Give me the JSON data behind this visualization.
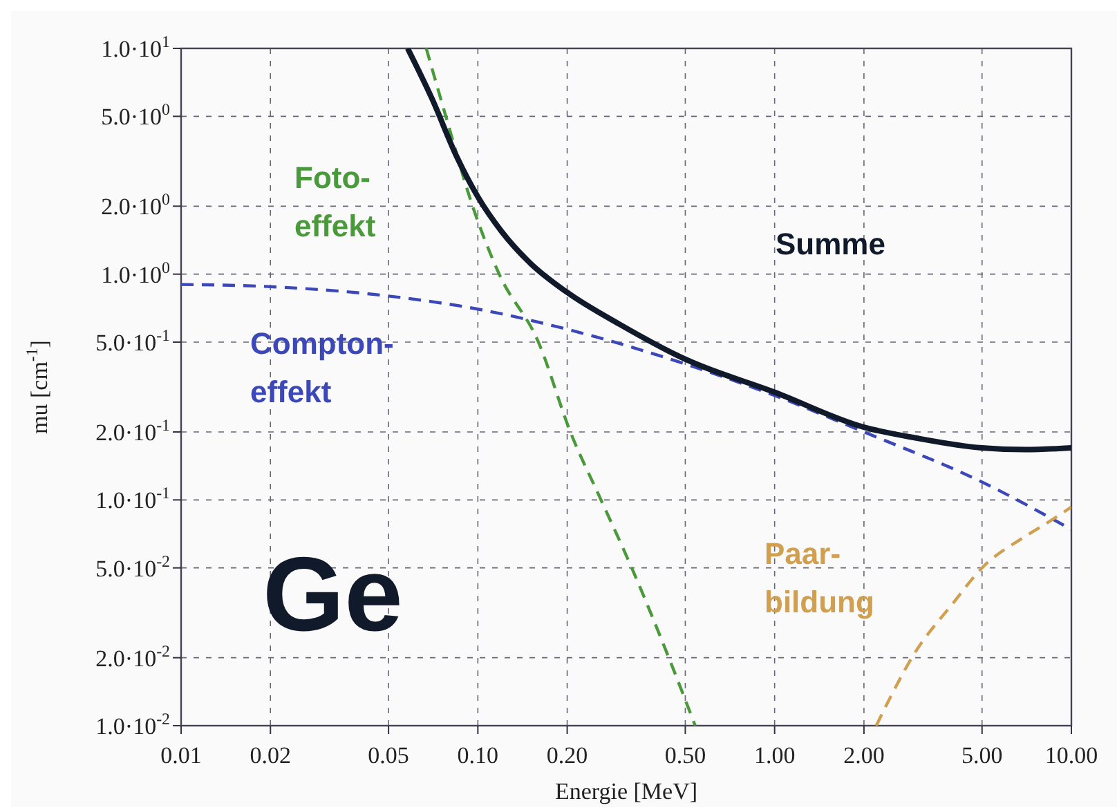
{
  "chart_data": {
    "type": "line",
    "xlabel": "Energie [MeV]",
    "ylabel": "mu [cm$^{-1}$]",
    "log": "xy",
    "grid": true,
    "xlim": [
      0.01,
      10
    ],
    "ylim": [
      0.01,
      10
    ],
    "xticks": [
      0.01,
      0.02,
      0.05,
      {
        "value": 0.1,
        "label": "0.10"
      },
      {
        "value": 0.2,
        "label": "0.20"
      },
      {
        "value": 0.5,
        "label": "0.50"
      },
      {
        "value": 1,
        "label": "1.00"
      },
      {
        "value": 2,
        "label": "2.00"
      },
      {
        "value": 5,
        "label": "5.00"
      },
      {
        "value": 10,
        "label": "10.00"
      }
    ],
    "yticks": [
      {
        "value": 0.01,
        "label": "1.0·10$^{-2}$"
      },
      {
        "value": 0.02,
        "label": "2.0·10$^{-2}$"
      },
      {
        "value": 0.05,
        "label": "5.0·10$^{-2}$"
      },
      {
        "value": 0.1,
        "label": "1.0·10$^{-1}$"
      },
      {
        "value": 0.2,
        "label": "2.0·10$^{-1}$"
      },
      {
        "value": 0.5,
        "label": "5.0·10$^{-1}$"
      },
      {
        "value": 1,
        "label": "1.0·10$^{0}$"
      },
      {
        "value": 2,
        "label": "2.0·10$^{0}$"
      },
      {
        "value": 5,
        "label": "5.0·10$^{0}$"
      },
      {
        "value": 10,
        "label": "1.0·10$^{1}$"
      }
    ],
    "series": [
      {
        "name": "Foto-\neffekt",
        "color": "#4a9a3c",
        "line_style": "dashed",
        "x": [
          0.067,
          0.078,
          0.096,
          0.118,
          0.16,
          0.205,
          0.26,
          0.33,
          0.44,
          0.54
        ],
        "values": [
          10,
          5,
          2,
          1,
          0.5,
          0.2,
          0.1,
          0.05,
          0.02,
          0.01
        ]
      },
      {
        "name": "Compton-\neffekt",
        "color": "#3c48b8",
        "line_style": "dashed",
        "x": [
          0.01,
          0.02,
          0.05,
          0.1,
          0.2,
          0.5,
          1,
          2,
          5,
          10
        ],
        "values": [
          0.9,
          0.88,
          0.8,
          0.7,
          0.57,
          0.4,
          0.29,
          0.2,
          0.12,
          0.074
        ]
      },
      {
        "name": "Summe",
        "color": "#111a2a",
        "line_style": "solid",
        "x": [
          0.058,
          0.07,
          0.085,
          0.1,
          0.12,
          0.15,
          0.2,
          0.3,
          0.5,
          1,
          2,
          3,
          5,
          7,
          10
        ],
        "values": [
          10,
          6,
          3.3,
          2.2,
          1.55,
          1.12,
          0.83,
          0.6,
          0.42,
          0.3,
          0.21,
          0.188,
          0.17,
          0.167,
          0.17
        ]
      },
      {
        "name": "Paar-\nbildung",
        "color": "#d0a050",
        "line_style": "dashed",
        "x": [
          2.2,
          2.5,
          2.9,
          4,
          5,
          7,
          8.4,
          10
        ],
        "values": [
          0.01,
          0.014,
          0.02,
          0.035,
          0.05,
          0.069,
          0.08,
          0.093
        ]
      }
    ],
    "annotations": [
      "Ge"
    ]
  }
}
